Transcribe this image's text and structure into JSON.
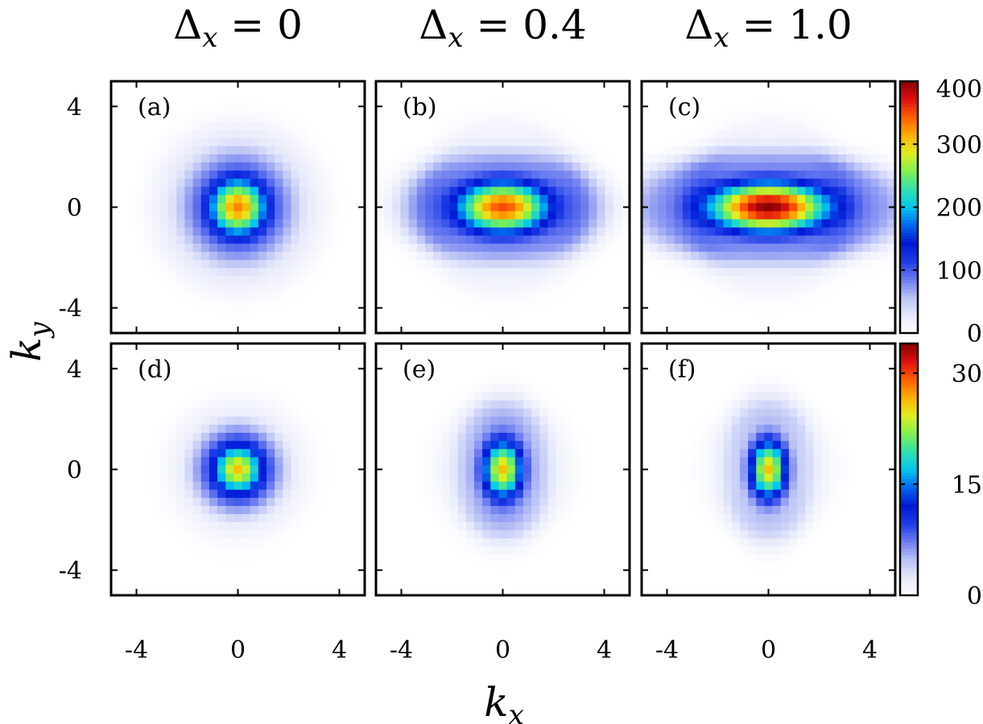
{
  "chart_data": {
    "type": "heatmap",
    "column_titles": [
      {
        "symbol": "Δ",
        "sub": "x",
        "eq": " = 0"
      },
      {
        "symbol": "Δ",
        "sub": "x",
        "eq": " = 0.4"
      },
      {
        "symbol": "Δ",
        "sub": "x",
        "eq": " = 1.0"
      }
    ],
    "xlabel": {
      "base": "k",
      "sub": "x"
    },
    "ylabel": {
      "base": "k",
      "sub": "y"
    },
    "x_range": [
      -5,
      5
    ],
    "y_range": [
      -5,
      5
    ],
    "x_ticks": [
      {
        "v": -4,
        "label": "-4"
      },
      {
        "v": 0,
        "label": "0"
      },
      {
        "v": 4,
        "label": "4"
      }
    ],
    "y_ticks": [
      {
        "v": 4,
        "label": "4"
      },
      {
        "v": 0,
        "label": "0"
      },
      {
        "v": -4,
        "label": "-4"
      }
    ],
    "grid": false,
    "colormap": [
      "#ffffff",
      "#e6e9fb",
      "#b9c1f5",
      "#6c7cf0",
      "#1d3ce6",
      "#0019d6",
      "#0066ee",
      "#00c8f0",
      "#30e0b0",
      "#80f050",
      "#e0ef20",
      "#ffb000",
      "#ff6000",
      "#e01010",
      "#8b0000"
    ],
    "rows": [
      {
        "colorbar": {
          "min": 0,
          "max": 400,
          "ticks": [
            {
              "v": 0,
              "label": "0"
            },
            {
              "v": 100,
              "label": "100"
            },
            {
              "v": 200,
              "label": "200"
            },
            {
              "v": 300,
              "label": "300"
            },
            {
              "v": 400,
              "label": "400"
            }
          ]
        },
        "panels": [
          {
            "label": "(a)",
            "peak": 330,
            "sx": 0.9,
            "sy": 0.9,
            "ring_r": 2.0,
            "ring_amp": 0.12,
            "ring_w": 0.45,
            "halo_amp": 0.05,
            "halo_r": 3.0
          },
          {
            "label": "(b)",
            "peak": 350,
            "sx": 1.45,
            "sy": 0.8,
            "ring_r": 1.9,
            "ring_amp": 0.13,
            "ring_w": 0.4,
            "halo_amp": 0.04,
            "halo_r": 3.0
          },
          {
            "label": "(c)",
            "peak": 400,
            "sx": 1.85,
            "sy": 0.75,
            "ring_r": 1.9,
            "ring_amp": 0.13,
            "ring_w": 0.4,
            "halo_amp": 0.035,
            "halo_r": 3.0
          }
        ]
      },
      {
        "colorbar": {
          "min": 0,
          "max": 34,
          "ticks": [
            {
              "v": 0,
              "label": "0"
            },
            {
              "v": 15,
              "label": "15"
            },
            {
              "v": 30,
              "label": "30"
            }
          ]
        },
        "panels": [
          {
            "label": "(d)",
            "peak": 26,
            "sx": 0.75,
            "sy": 0.75,
            "ring_r": 1.55,
            "ring_amp": 0.12,
            "ring_w": 0.4,
            "halo_amp": 0.04,
            "halo_r": 2.4
          },
          {
            "label": "(e)",
            "peak": 26,
            "sx": 0.6,
            "sy": 0.9,
            "ring_r": 1.5,
            "ring_amp": 0.12,
            "ring_w": 0.4,
            "halo_amp": 0.035,
            "halo_r": 2.3
          },
          {
            "label": "(f)",
            "peak": 26,
            "sx": 0.55,
            "sy": 0.9,
            "ring_r": 1.5,
            "ring_amp": 0.1,
            "ring_w": 0.35,
            "halo_amp": 0.03,
            "halo_r": 2.2
          }
        ]
      }
    ]
  }
}
